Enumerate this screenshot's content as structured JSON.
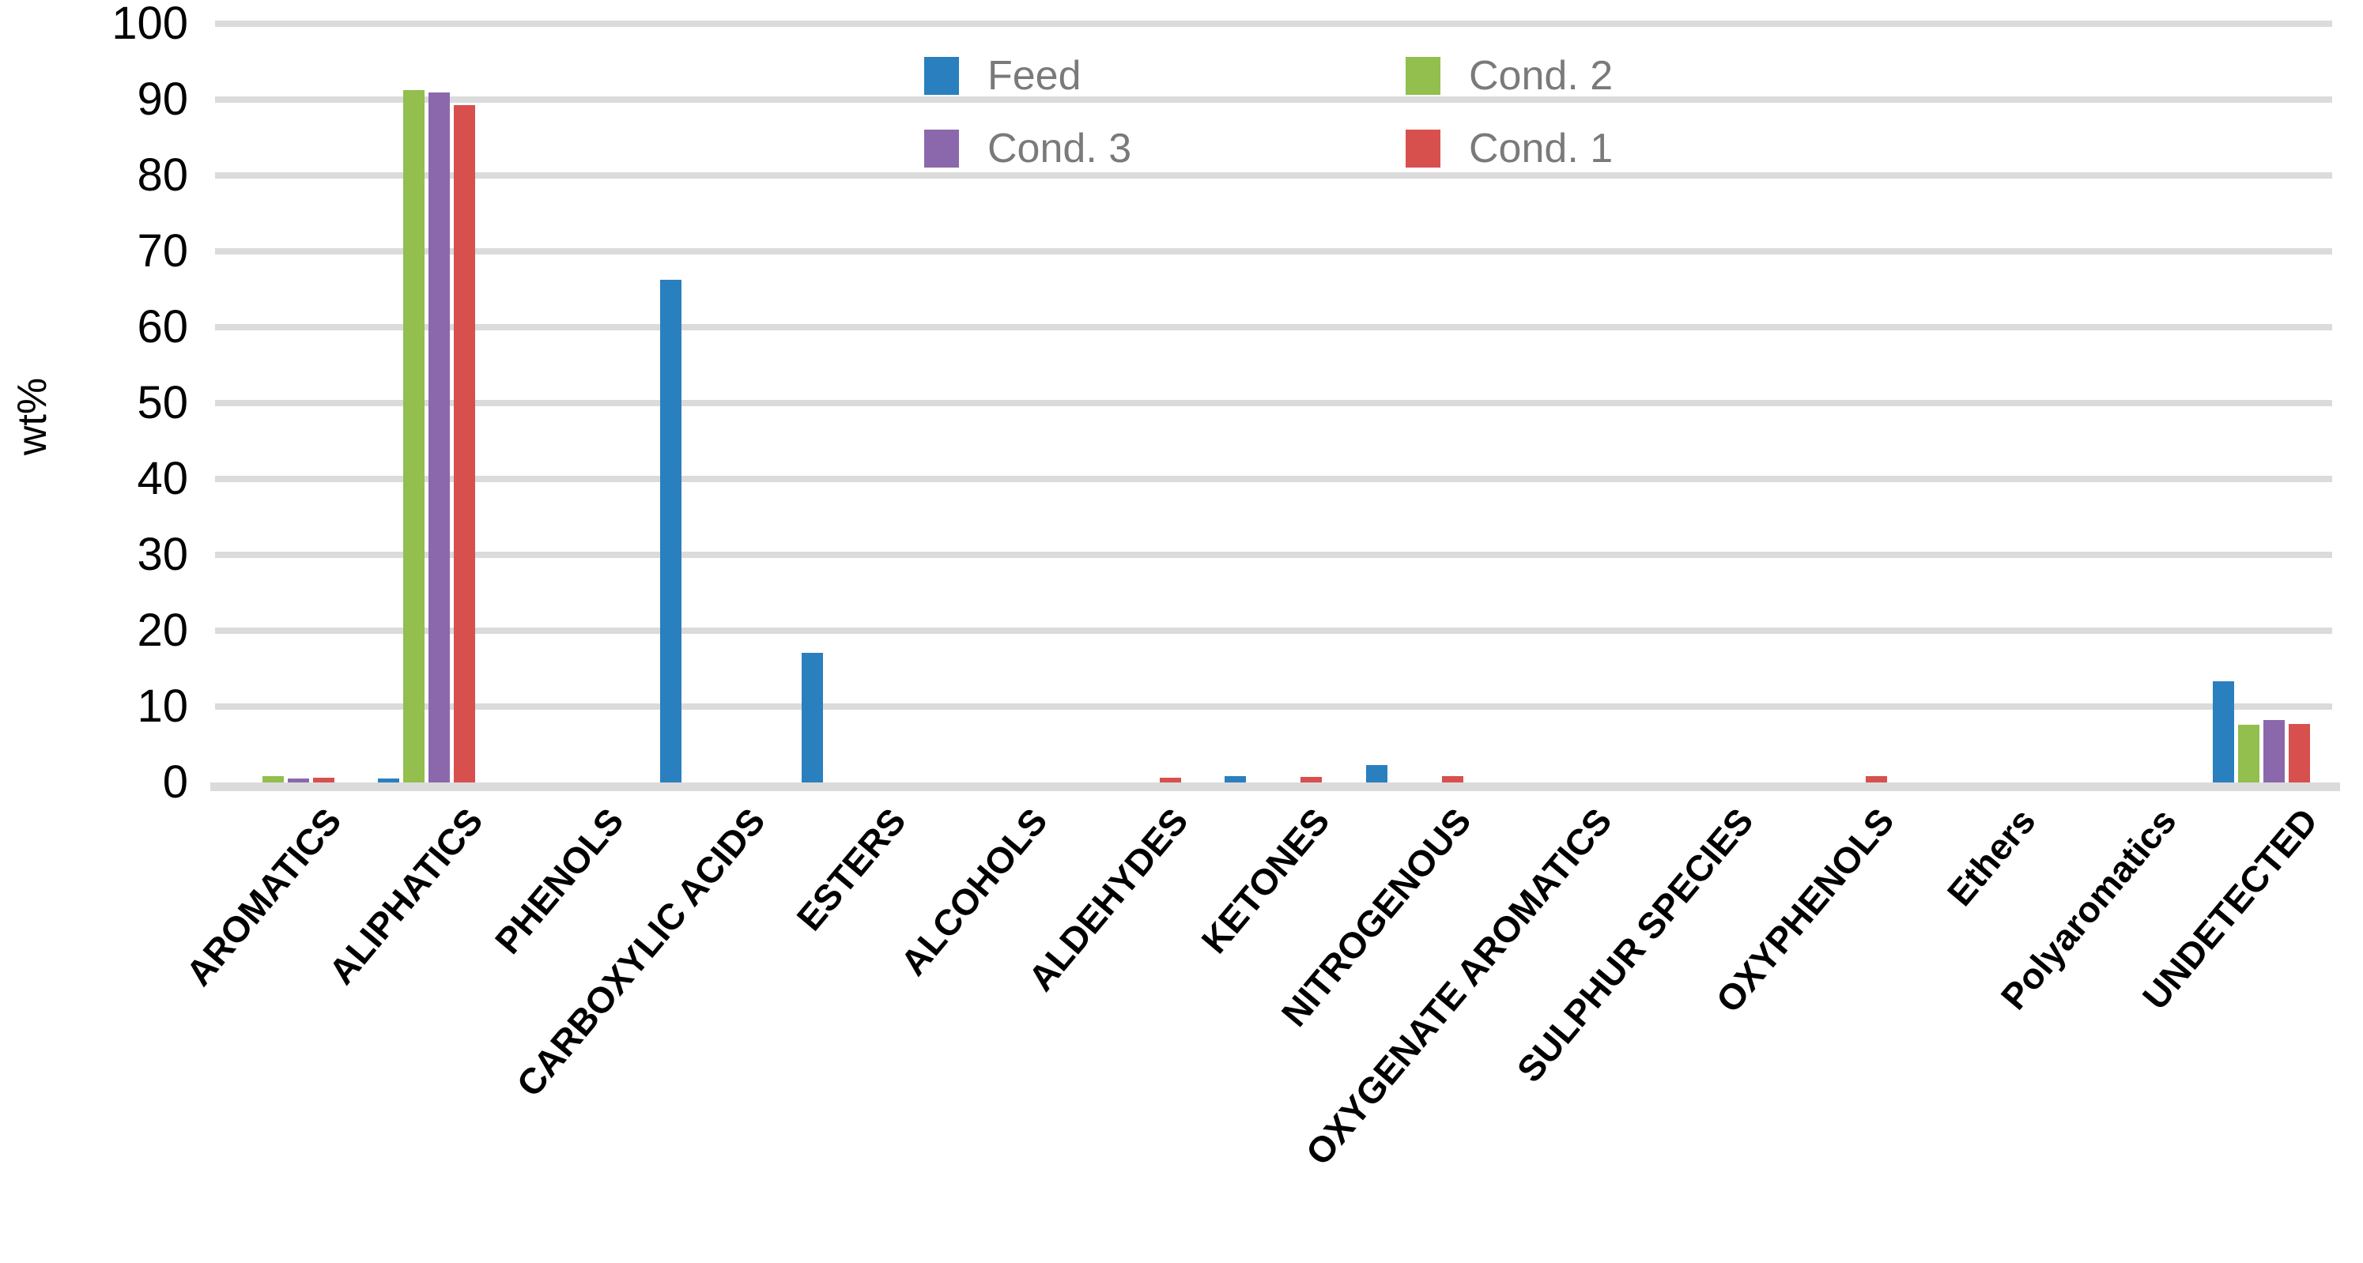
{
  "chart_data": {
    "type": "bar",
    "title": "",
    "xlabel": "",
    "ylabel": "wt%",
    "ylim": [
      0,
      100
    ],
    "yticks": [
      0,
      10,
      20,
      30,
      40,
      50,
      60,
      70,
      80,
      90,
      100
    ],
    "grid": true,
    "gridline_color": "#dbdbdb",
    "axis_text_color": "#000000",
    "legend_text_color": "#7a7a7a",
    "categories": [
      "AROMATICS",
      "ALIPHATICS",
      "PHENOLS",
      "CARBOXYLIC ACIDS",
      "ESTERS",
      "ALCOHOLS",
      "ALDEHYDES",
      "KETONES",
      "NITROGENOUS",
      "OXYGENATE AROMATICS",
      "SULPHUR SPECIES",
      "OXYPHENOLS",
      "Ethers",
      "Polyaromatics",
      "UNDETECTED"
    ],
    "series": [
      {
        "name": "Feed",
        "color": "#2a7fbe",
        "values": [
          0,
          0.5,
          0,
          66.2,
          17.1,
          0,
          0,
          0.8,
          2.3,
          0,
          0,
          0,
          0,
          0,
          13.3
        ]
      },
      {
        "name": "Cond. 2",
        "color": "#92bf4d",
        "values": [
          0.8,
          91.2,
          0,
          0,
          0,
          0,
          0,
          0,
          0,
          0,
          0,
          0,
          0,
          0,
          7.6
        ]
      },
      {
        "name": "Cond. 3",
        "color": "#8b68ac",
        "values": [
          0.5,
          90.9,
          0,
          0,
          0,
          0,
          0,
          0,
          0,
          0,
          0,
          0,
          0,
          0,
          8.2
        ]
      },
      {
        "name": "Cond. 1",
        "color": "#d8504e",
        "values": [
          0.6,
          89.3,
          0,
          0,
          0,
          0,
          0.6,
          0.7,
          0.8,
          0,
          0,
          0.8,
          0,
          0,
          7.7
        ]
      }
    ],
    "legend": {
      "position": "top-center",
      "rows": [
        [
          "Feed",
          "Cond. 2"
        ],
        [
          "Cond. 3",
          "Cond. 1"
        ]
      ]
    }
  }
}
